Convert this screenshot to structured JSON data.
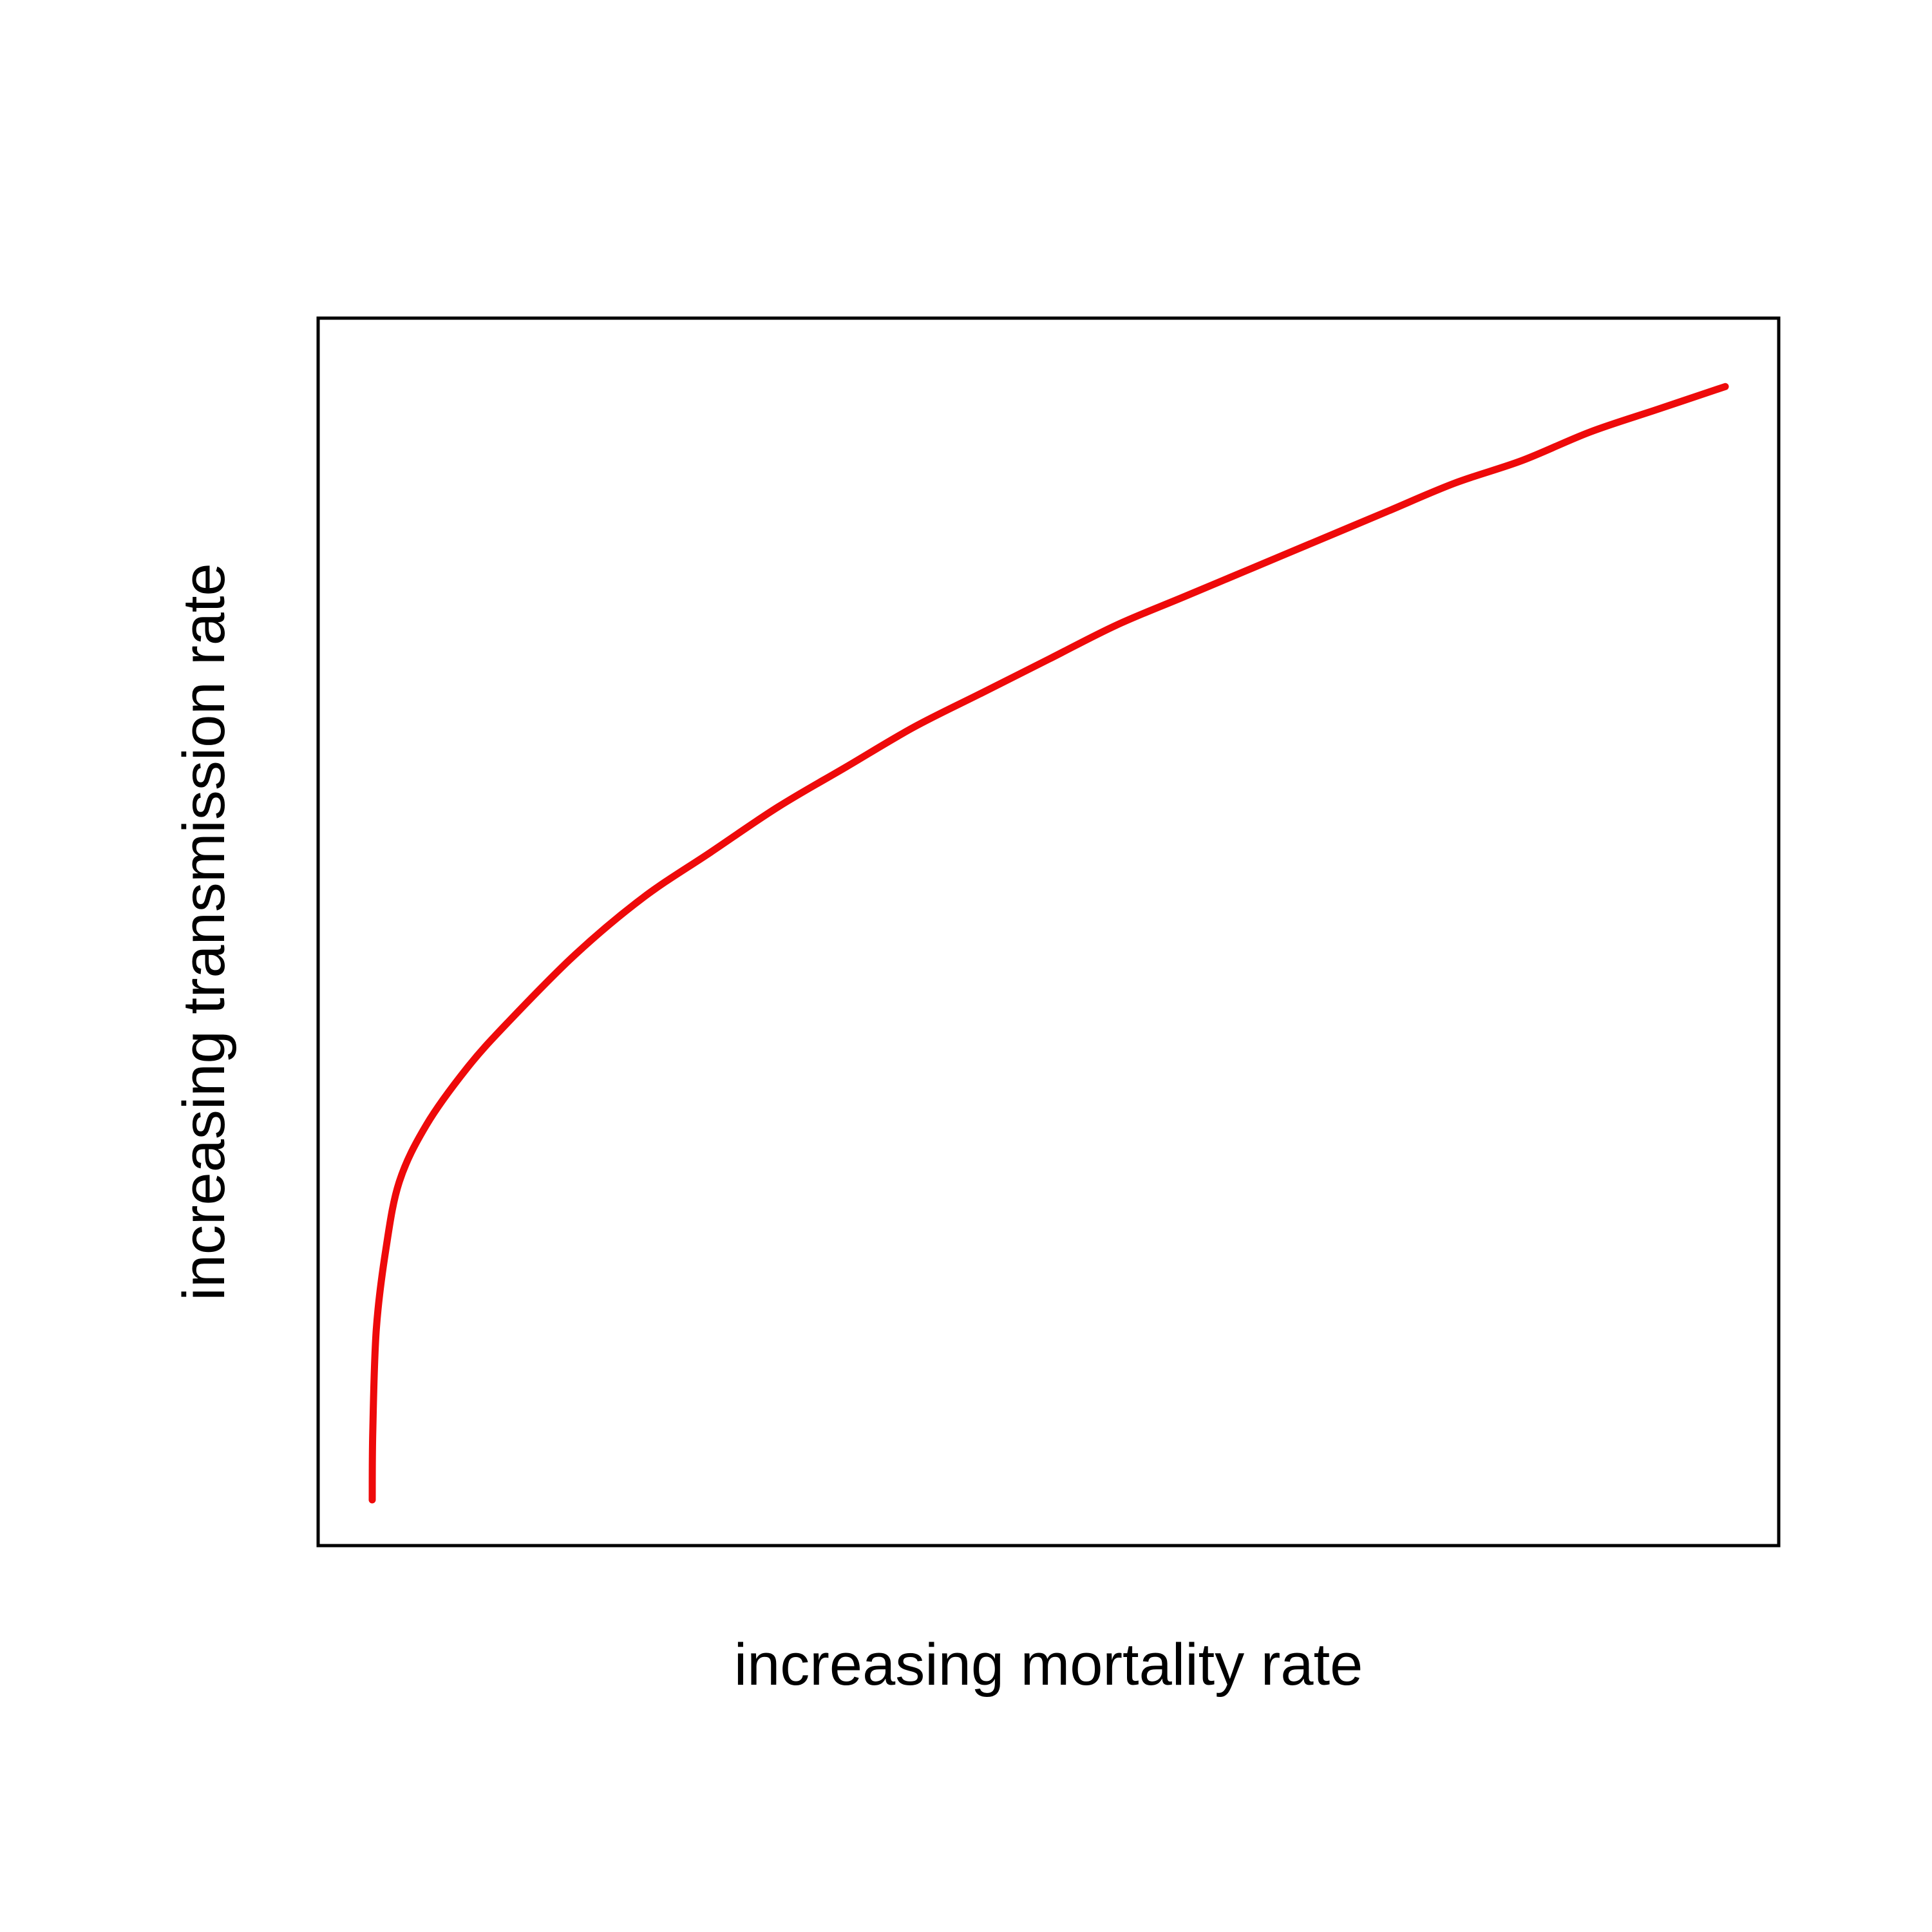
{
  "chart_data": {
    "type": "line",
    "title": "",
    "xlabel": "increasing mortality rate",
    "ylabel": "increasing transmission rate",
    "grid": false,
    "axis_ticks": false,
    "xlim": [
      0,
      1
    ],
    "ylim": [
      0,
      1
    ],
    "series": [
      {
        "color": "#ee0a0a",
        "x": [
          0.0,
          0.0004,
          0.003,
          0.01,
          0.02,
          0.04,
          0.07,
          0.1,
          0.15,
          0.2,
          0.25,
          0.3,
          0.35,
          0.4,
          0.45,
          0.5,
          0.55,
          0.6,
          0.65,
          0.7,
          0.75,
          0.8,
          0.85,
          0.9,
          0.95,
          1.0
        ],
        "y": [
          0.0,
          0.06,
          0.15,
          0.22,
          0.28,
          0.33,
          0.38,
          0.42,
          0.48,
          0.53,
          0.57,
          0.61,
          0.645,
          0.68,
          0.71,
          0.74,
          0.77,
          0.795,
          0.82,
          0.845,
          0.87,
          0.895,
          0.915,
          0.94,
          0.96,
          0.98
        ]
      }
    ]
  },
  "colors": {
    "curve": "#ee0a0a",
    "frame": "#000000",
    "background": "#ffffff"
  }
}
